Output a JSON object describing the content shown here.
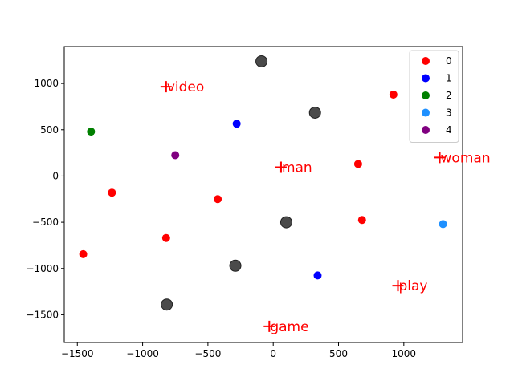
{
  "chart_data": {
    "type": "scatter",
    "xlim": [
      -1600,
      1450
    ],
    "ylim": [
      -1800,
      1400
    ],
    "x_ticks": [
      -1500,
      -1000,
      -500,
      0,
      500,
      1000
    ],
    "y_ticks": [
      -1500,
      -1000,
      -500,
      0,
      500,
      1000
    ],
    "x_tick_labels": [
      "−1500",
      "−1000",
      "−500",
      "0",
      "500",
      "1000"
    ],
    "y_tick_labels": [
      "−1500",
      "−1000",
      "−500",
      "0",
      "500",
      "1000"
    ],
    "grid": false,
    "legend_position": "top-right",
    "series": [
      {
        "name": "0",
        "color": "#ff0000",
        "points": [
          [
            920,
            880
          ],
          [
            650,
            130
          ],
          [
            680,
            -475
          ],
          [
            -1235,
            -180
          ],
          [
            -425,
            -250
          ],
          [
            -820,
            -670
          ],
          [
            -1455,
            -845
          ]
        ]
      },
      {
        "name": "1",
        "color": "#0000ff",
        "points": [
          [
            -280,
            565
          ],
          [
            340,
            -1075
          ]
        ]
      },
      {
        "name": "2",
        "color": "#008000",
        "points": [
          [
            -1395,
            480
          ]
        ]
      },
      {
        "name": "3",
        "color": "#1e90ff",
        "points": [
          [
            1300,
            -520
          ]
        ]
      },
      {
        "name": "4",
        "color": "#800080",
        "points": [
          [
            -750,
            225
          ]
        ]
      }
    ],
    "gray_points": {
      "color": "#404040",
      "points": [
        [
          -90,
          1240
        ],
        [
          320,
          685
        ],
        [
          100,
          -500
        ],
        [
          -290,
          -970
        ],
        [
          -815,
          -1390
        ]
      ]
    },
    "words": [
      {
        "text": "video",
        "x": -820,
        "y": 965,
        "color": "#ff0000"
      },
      {
        "text": "man",
        "x": 60,
        "y": 95,
        "color": "#ff0000"
      },
      {
        "text": "woman",
        "x": 1275,
        "y": 200,
        "color": "#ff0000"
      },
      {
        "text": "play",
        "x": 955,
        "y": -1185,
        "color": "#ff0000"
      },
      {
        "text": "game",
        "x": -30,
        "y": -1625,
        "color": "#ff0000"
      }
    ]
  }
}
